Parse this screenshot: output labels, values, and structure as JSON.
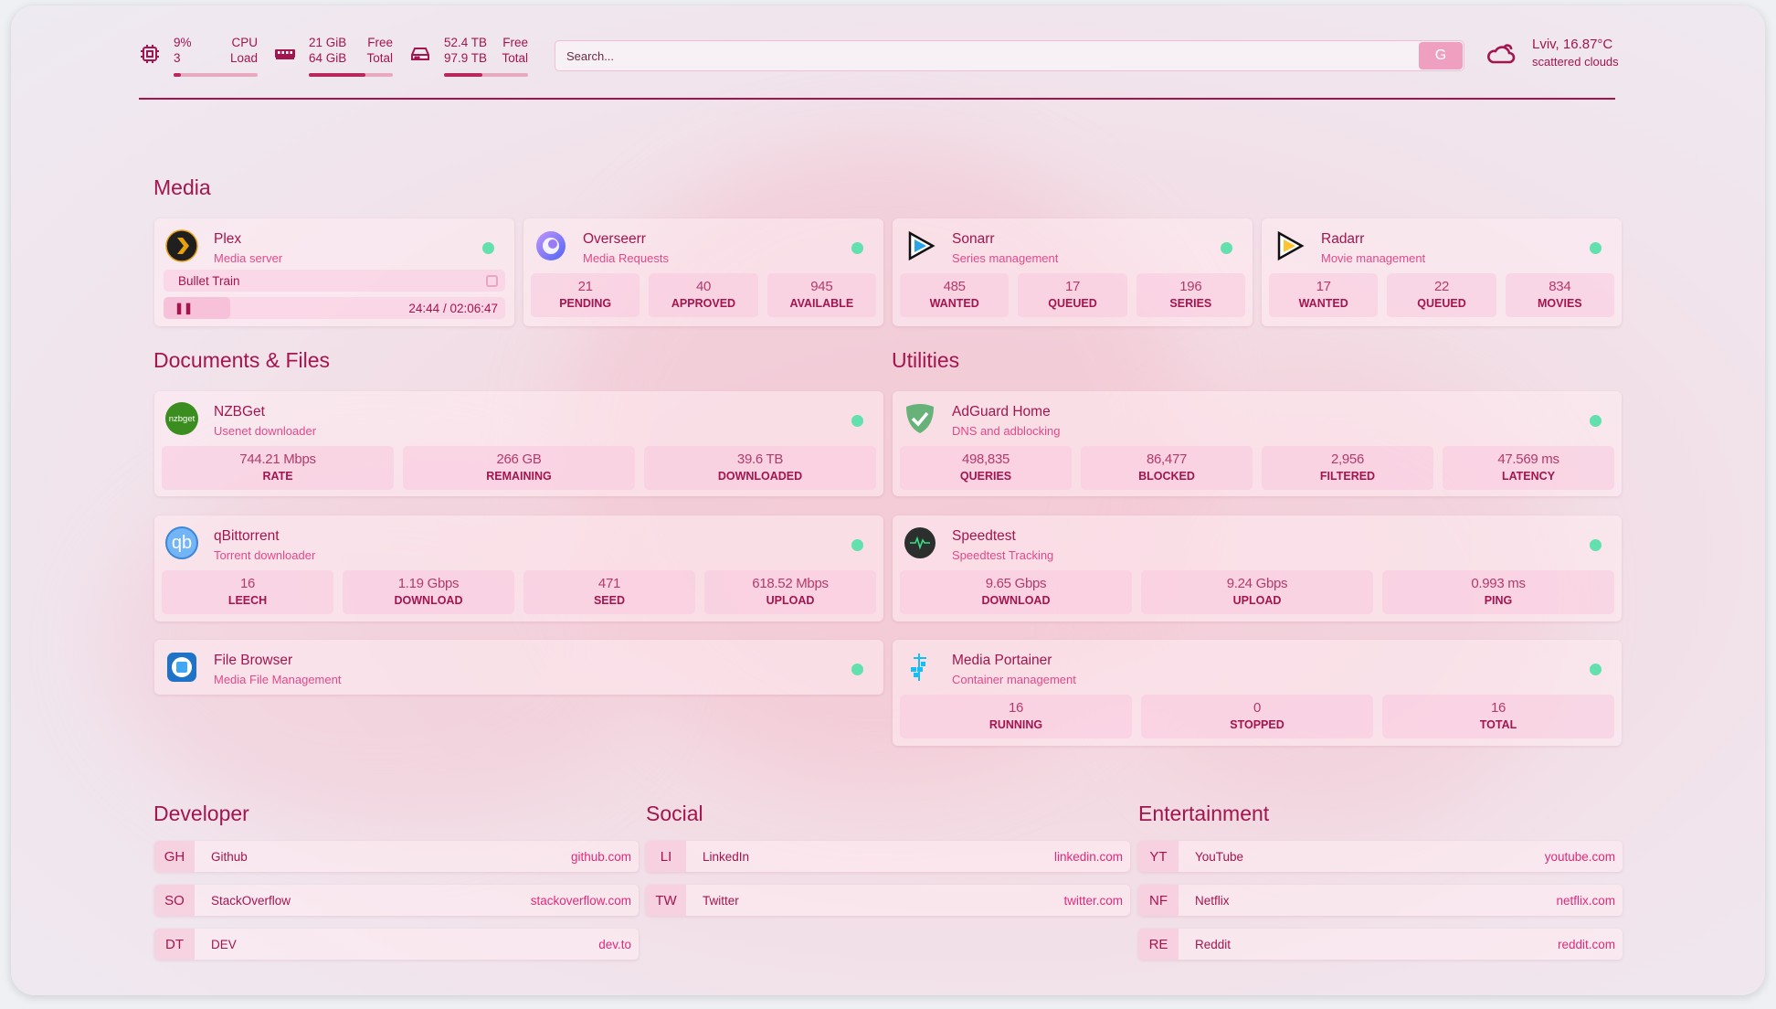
{
  "resources": {
    "cpu": {
      "icon": "cpu-icon",
      "value": "9%",
      "sub": "3",
      "label1": "CPU",
      "label2": "Load",
      "usage": 9
    },
    "memory": {
      "icon": "memory-icon",
      "value": "21 GiB",
      "sub": "64 GiB",
      "label1": "Free",
      "label2": "Total",
      "usage": 67
    },
    "disk": {
      "icon": "disk-icon",
      "value": "52.4 TB",
      "sub": "97.9 TB",
      "label1": "Free",
      "label2": "Total",
      "usage": 46
    }
  },
  "search": {
    "placeholder": "Search...",
    "button": "G"
  },
  "weather": {
    "icon": "cloud-icon",
    "location_temp": "Lviv, 16.87°C",
    "condition": "scattered clouds"
  },
  "colors": {
    "accent": "#a3154f",
    "link": "#e02a7a",
    "status_ok": "#62e0ad"
  },
  "sections": {
    "media": "Media",
    "docs": "Documents & Files",
    "utilities": "Utilities",
    "developer": "Developer",
    "social": "Social",
    "entertainment": "Entertainment"
  },
  "media": [
    {
      "name": "Plex",
      "desc": "Media server",
      "now_playing": {
        "title": "Bullet Train",
        "time": "24:44 / 02:06:47",
        "progress": 19.5
      }
    },
    {
      "name": "Overseerr",
      "desc": "Media Requests",
      "stats": [
        {
          "v": "21",
          "l": "PENDING"
        },
        {
          "v": "40",
          "l": "APPROVED"
        },
        {
          "v": "945",
          "l": "AVAILABLE"
        }
      ]
    },
    {
      "name": "Sonarr",
      "desc": "Series management",
      "stats": [
        {
          "v": "485",
          "l": "WANTED"
        },
        {
          "v": "17",
          "l": "QUEUED"
        },
        {
          "v": "196",
          "l": "SERIES"
        }
      ]
    },
    {
      "name": "Radarr",
      "desc": "Movie management",
      "stats": [
        {
          "v": "17",
          "l": "WANTED"
        },
        {
          "v": "22",
          "l": "QUEUED"
        },
        {
          "v": "834",
          "l": "MOVIES"
        }
      ]
    }
  ],
  "docs": [
    {
      "name": "NZBGet",
      "desc": "Usenet downloader",
      "icon_text": "nzbget",
      "stats": [
        {
          "v": "744.21 Mbps",
          "l": "RATE"
        },
        {
          "v": "266 GB",
          "l": "REMAINING"
        },
        {
          "v": "39.6 TB",
          "l": "DOWNLOADED"
        }
      ]
    },
    {
      "name": "qBittorrent",
      "desc": "Torrent downloader",
      "icon_text": "qb",
      "stats": [
        {
          "v": "16",
          "l": "LEECH"
        },
        {
          "v": "1.19 Gbps",
          "l": "DOWNLOAD"
        },
        {
          "v": "471",
          "l": "SEED"
        },
        {
          "v": "618.52 Mbps",
          "l": "UPLOAD"
        }
      ]
    },
    {
      "name": "File Browser",
      "desc": "Media File Management"
    }
  ],
  "utilities": [
    {
      "name": "AdGuard Home",
      "desc": "DNS and adblocking",
      "stats": [
        {
          "v": "498,835",
          "l": "QUERIES"
        },
        {
          "v": "86,477",
          "l": "BLOCKED"
        },
        {
          "v": "2,956",
          "l": "FILTERED"
        },
        {
          "v": "47.569 ms",
          "l": "LATENCY"
        }
      ]
    },
    {
      "name": "Speedtest",
      "desc": "Speedtest Tracking",
      "stats": [
        {
          "v": "9.65 Gbps",
          "l": "DOWNLOAD"
        },
        {
          "v": "9.24 Gbps",
          "l": "UPLOAD"
        },
        {
          "v": "0.993 ms",
          "l": "PING"
        }
      ]
    },
    {
      "name": "Media Portainer",
      "desc": "Container management",
      "stats": [
        {
          "v": "16",
          "l": "RUNNING"
        },
        {
          "v": "0",
          "l": "STOPPED"
        },
        {
          "v": "16",
          "l": "TOTAL"
        }
      ]
    }
  ],
  "bookmarks": {
    "developer": [
      {
        "abbr": "GH",
        "name": "Github",
        "url": "github.com"
      },
      {
        "abbr": "SO",
        "name": "StackOverflow",
        "url": "stackoverflow.com"
      },
      {
        "abbr": "DT",
        "name": "DEV",
        "url": "dev.to"
      }
    ],
    "social": [
      {
        "abbr": "LI",
        "name": "LinkedIn",
        "url": "linkedin.com"
      },
      {
        "abbr": "TW",
        "name": "Twitter",
        "url": "twitter.com"
      }
    ],
    "entertainment": [
      {
        "abbr": "YT",
        "name": "YouTube",
        "url": "youtube.com"
      },
      {
        "abbr": "NF",
        "name": "Netflix",
        "url": "netflix.com"
      },
      {
        "abbr": "RE",
        "name": "Reddit",
        "url": "reddit.com"
      }
    ]
  }
}
